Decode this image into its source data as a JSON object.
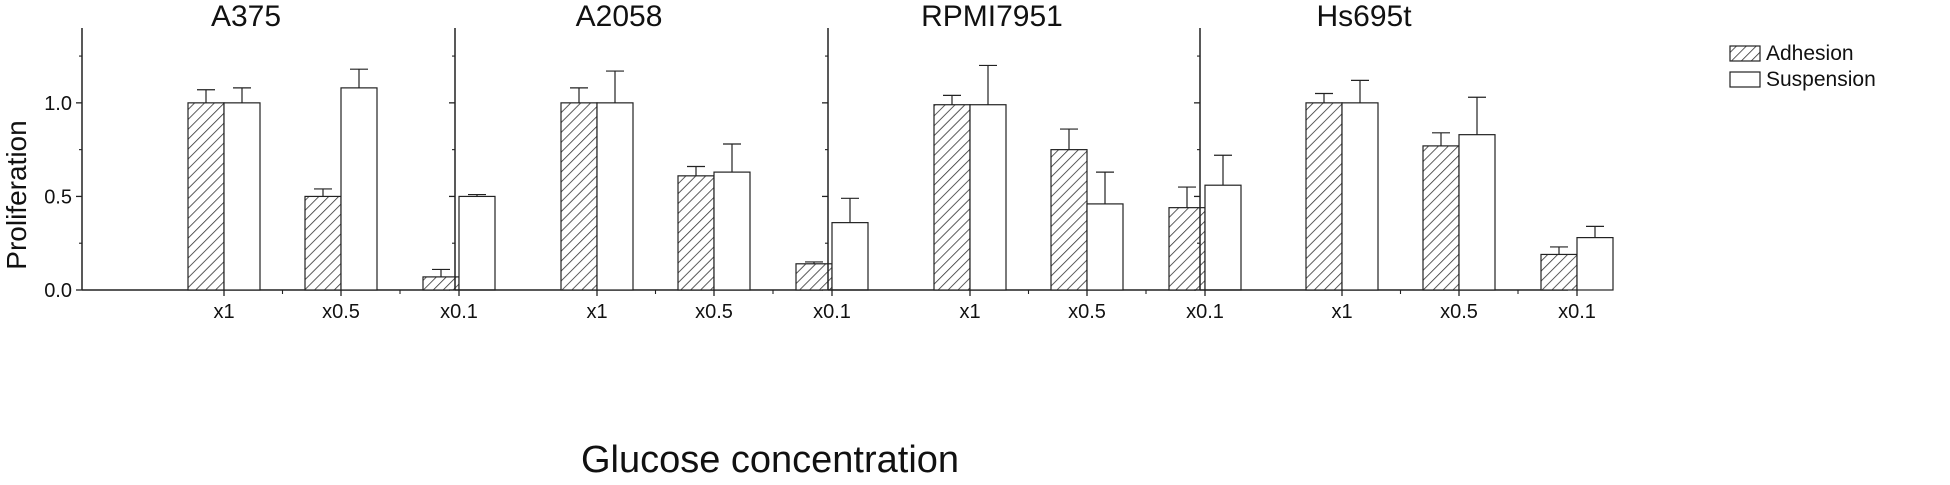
{
  "chart_data": {
    "type": "bar",
    "ylabel": "Proliferation",
    "xlabel": "Glucose concentration",
    "categories": [
      "x1",
      "x0.5",
      "x0.1"
    ],
    "ylim": [
      0,
      1.4
    ],
    "yticks": [
      0.0,
      0.5,
      1.0
    ],
    "ytick_labels": [
      "0.0",
      "0.5",
      "1.0"
    ],
    "legend": {
      "position": "top-right",
      "entries": [
        {
          "name": "Adhesion",
          "style": "hatched"
        },
        {
          "name": "Suspension",
          "style": "open"
        }
      ]
    },
    "panels": [
      {
        "title": "A375",
        "series": [
          {
            "name": "Adhesion",
            "values": [
              1.0,
              0.5,
              0.07
            ],
            "errors": [
              0.07,
              0.04,
              0.04
            ]
          },
          {
            "name": "Suspension",
            "values": [
              1.0,
              1.08,
              0.5
            ],
            "errors": [
              0.08,
              0.1,
              0.01
            ]
          }
        ]
      },
      {
        "title": "A2058",
        "series": [
          {
            "name": "Adhesion",
            "values": [
              1.0,
              0.61,
              0.14
            ],
            "errors": [
              0.08,
              0.05,
              0.01
            ]
          },
          {
            "name": "Suspension",
            "values": [
              1.0,
              0.63,
              0.36
            ],
            "errors": [
              0.17,
              0.15,
              0.13
            ]
          }
        ]
      },
      {
        "title": "RPMI7951",
        "series": [
          {
            "name": "Adhesion",
            "values": [
              0.99,
              0.75,
              0.44
            ],
            "errors": [
              0.05,
              0.11,
              0.11
            ]
          },
          {
            "name": "Suspension",
            "values": [
              0.99,
              0.46,
              0.56
            ],
            "errors": [
              0.21,
              0.17,
              0.16
            ]
          }
        ]
      },
      {
        "title": "Hs695t",
        "series": [
          {
            "name": "Adhesion",
            "values": [
              1.0,
              0.77,
              0.19
            ],
            "errors": [
              0.05,
              0.07,
              0.04
            ]
          },
          {
            "name": "Suspension",
            "values": [
              1.0,
              0.83,
              0.28
            ],
            "errors": [
              0.12,
              0.2,
              0.06
            ]
          }
        ]
      }
    ]
  },
  "colors": {
    "axis": "#222222",
    "bar_edge": "#222222",
    "hatch": "#333333",
    "open_fill": "#ffffff"
  }
}
